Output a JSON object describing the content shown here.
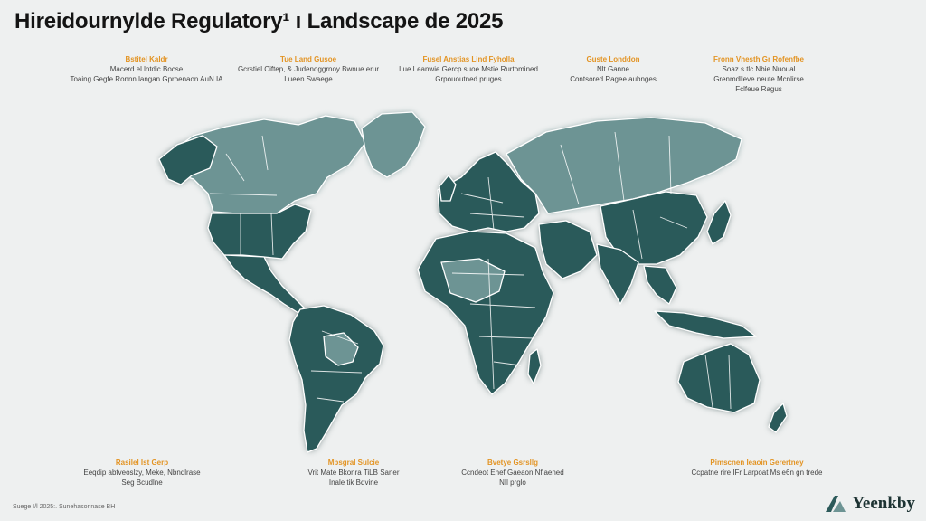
{
  "title": "Hireidournylde Regulatory¹ ı Landscape de 2025",
  "callouts_top": [
    {
      "head": "Bstitel Kaldr",
      "lines": [
        "Macerd el lntdic Bocse",
        "Toaing Gegfe Ronnn langan Gproenaon AuN.IA"
      ]
    },
    {
      "head": "Tue Land Gusoe",
      "lines": [
        "Gcrstiel Ciftep, & Judenoggrnoy Bwnue erur",
        "Lueen Swaege"
      ]
    },
    {
      "head": "Fusel Anstias Lind Fyholla",
      "lines": [
        "Lue Leanwie Gercp suoe Mstie Rurtomined",
        "Grpououtned pruges"
      ]
    },
    {
      "head": "Guste Londdon",
      "lines": [
        "Nlt Ganne",
        "Contsored Ragee aubnges"
      ]
    },
    {
      "head": "Fronn Vhesth Gr Rofenfbe",
      "lines": [
        "Soaz s tlc Nbie Nuoual",
        "Grenmdlleve neute Mcnlirse",
        "Fclfeue Ragus"
      ]
    }
  ],
  "callouts_bottom": [
    {
      "head": "Rasilel Ist Gerp",
      "lines": [
        "Eeqdip abtveoslzy, Meke, Nbndlrase",
        "Seg Bcudlne"
      ]
    },
    {
      "head": "Mbsgral Sulcie",
      "lines": [
        "Vrit Mate Bkonra TiLB Saner",
        "Inale tik Bdvine"
      ]
    },
    {
      "head": "Bvetye Gsrsllg",
      "lines": [
        "Ccndeot Ehef Gaeaon Nfiaened",
        "NIl prglo"
      ]
    },
    {
      "head": "Pimscnen Ieaoin Gerertney",
      "lines": [
        "Ccpatne rire IFr Larpoat Ms e6n gn trede"
      ]
    }
  ],
  "footer": "Suege I/l 2025:. Sunehasonnase BH",
  "logo": {
    "text": "Yeenkby",
    "icon": "yeenkby-logo-icon"
  },
  "colors": {
    "land_dark": "#2c5a5a",
    "land_light": "#6d9494",
    "accent": "#e39424",
    "background": "#eef0f0"
  }
}
